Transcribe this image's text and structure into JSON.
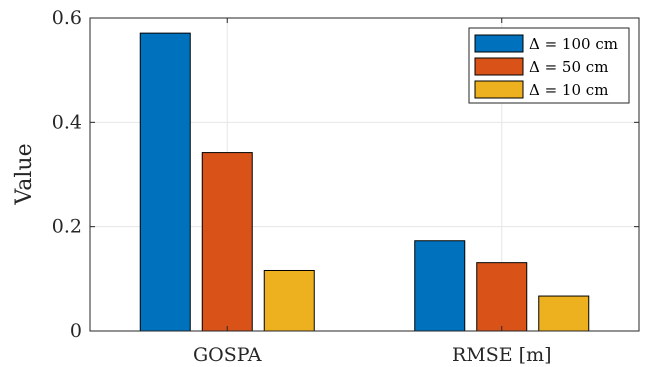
{
  "chart_data": {
    "type": "bar",
    "title": "",
    "xlabel": "",
    "ylabel": "Value",
    "categories": [
      "GOSPA",
      "RMSE [m]"
    ],
    "ylim": [
      0,
      0.6
    ],
    "yticks": [
      0,
      0.2,
      0.4,
      0.6
    ],
    "ytick_labels": [
      "0",
      "0.2",
      "0.4",
      "0.6"
    ],
    "grid": true,
    "legend_position": "top-right",
    "series": [
      {
        "name": "Δ = 100 cm",
        "color": "#0072BD",
        "values": [
          0.571,
          0.173
        ]
      },
      {
        "name": "Δ = 50 cm",
        "color": "#D95319",
        "values": [
          0.342,
          0.131
        ]
      },
      {
        "name": "Δ = 10 cm",
        "color": "#EDB120",
        "values": [
          0.116,
          0.067
        ]
      }
    ]
  }
}
